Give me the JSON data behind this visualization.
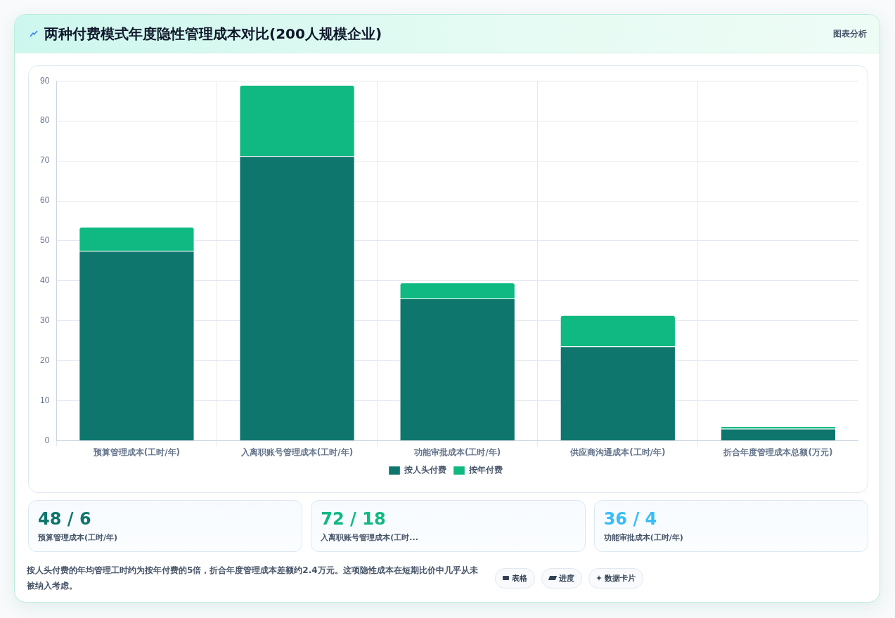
{
  "chart_data": [
    {
      "type": "bar",
      "title": "两种付费模式年度隐性管理成本对比(200人规模企业)",
      "categories": [
        "预算管理成本(工时/年)",
        "入离职账号管理成本(工时/年)",
        "功能审批成本(工时/年)",
        "供应商沟通成本(工时/年)",
        "折合年度管理成本总额(万元)"
      ],
      "series": [
        {
          "name": "按人头付费",
          "color": "#0f766e",
          "values": [
            47.5,
            71.2,
            35.6,
            23.6,
            3.0
          ]
        },
        {
          "name": "按年付费",
          "color": "#10b981",
          "values": [
            6,
            17.8,
            4,
            7.8,
            0.6
          ]
        }
      ],
      "stacked": true,
      "ylim": [
        0,
        90
      ],
      "yticks": [
        0,
        10,
        20,
        30,
        40,
        50,
        60,
        70,
        80,
        90
      ],
      "grid": true,
      "legend": "bottom",
      "annotations": [
        "图表分析",
        "按人头付费的年均管理工时约为按年付费的5倍，折合年度管理成本差额约2.4万元。这项隐性成本在短期比价中几乎从未被纳入考虑。",
        "表格",
        "进度",
        "数据卡片"
      ]
    },
    {
      "type": "other",
      "title": "48 / 6",
      "subtitle": "预算管理成本(工时/年)",
      "color": "#0f766e"
    },
    {
      "type": "other",
      "title": "72 / 18",
      "subtitle": "入离职账号管理成本(工时...",
      "color": "#10b981"
    },
    {
      "type": "other",
      "title": "36 / 4",
      "subtitle": "功能审批成本(工时/年)",
      "color": "#38bdf8"
    }
  ]
}
